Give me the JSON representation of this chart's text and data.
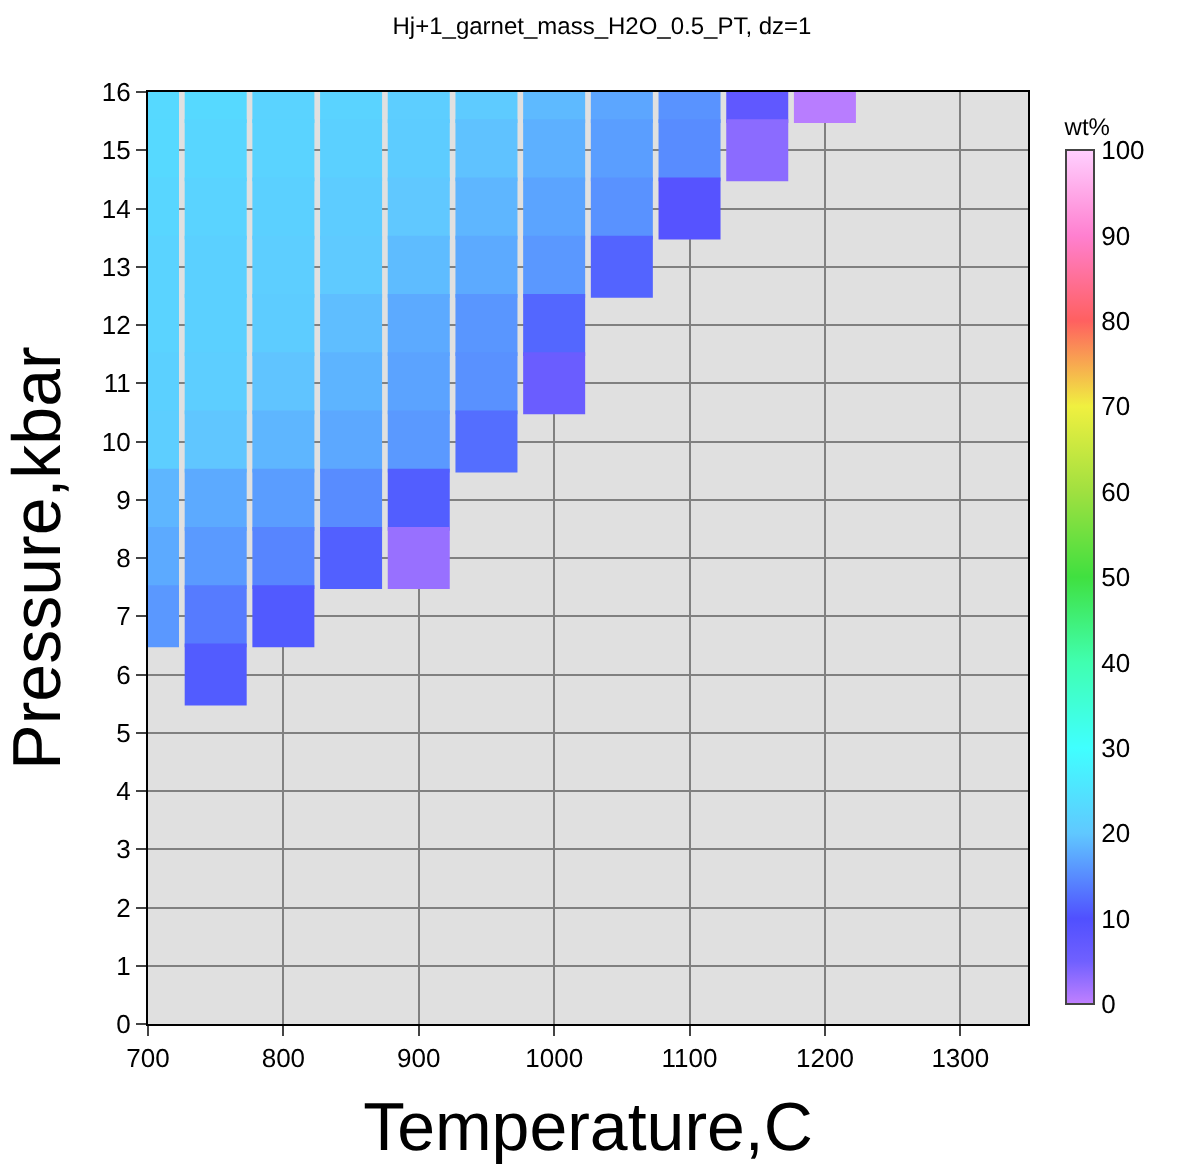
{
  "chart_data": {
    "type": "scatter",
    "title": "Hj+1_garnet_mass_H2O_0.5_PT, dz=1",
    "xlabel": "Temperature,C",
    "ylabel": "Pressure,kbar",
    "clabel": "wt%",
    "marker": "square",
    "x": [
      700,
      750,
      800,
      850,
      900,
      950,
      1000,
      1050,
      1100,
      1150,
      1200,
      700,
      750,
      800,
      850,
      900,
      950,
      1000,
      1050,
      1100,
      1150,
      700,
      750,
      800,
      850,
      900,
      950,
      1000,
      1050,
      1100,
      700,
      750,
      800,
      850,
      900,
      950,
      1000,
      1050,
      700,
      750,
      800,
      850,
      900,
      950,
      1000,
      700,
      750,
      800,
      850,
      900,
      950,
      1000,
      700,
      750,
      800,
      850,
      900,
      950,
      700,
      750,
      800,
      850,
      900,
      700,
      750,
      800,
      850,
      900,
      700,
      750,
      800,
      750
    ],
    "values": [
      16,
      16,
      16,
      16,
      16,
      16,
      16,
      16,
      16,
      16,
      16,
      15,
      15,
      15,
      15,
      15,
      15,
      15,
      15,
      15,
      15,
      14,
      14,
      14,
      14,
      14,
      14,
      14,
      14,
      14,
      13,
      13,
      13,
      13,
      13,
      13,
      13,
      13,
      12,
      12,
      12,
      12,
      12,
      12,
      12,
      11,
      11,
      11,
      11,
      11,
      11,
      11,
      10,
      10,
      10,
      10,
      10,
      10,
      9,
      9,
      9,
      9,
      9,
      8,
      8,
      8,
      8,
      8,
      7,
      7,
      7,
      6
    ],
    "cvalues": [
      23,
      23,
      22,
      22,
      21,
      20.5,
      18.8,
      17.2,
      15.6,
      7.5,
      0.5,
      23,
      22.5,
      22,
      21.5,
      20.8,
      19.5,
      18,
      16.5,
      15,
      3.3,
      22.5,
      22,
      21.5,
      20.8,
      20,
      18.5,
      17,
      15.5,
      9,
      22,
      21.5,
      21,
      20.3,
      19,
      17.5,
      16,
      11.7,
      22,
      21.5,
      20.8,
      19.2,
      17.5,
      15.8,
      11.9,
      21.5,
      21,
      19.7,
      18.3,
      16.9,
      15.4,
      6,
      21,
      19.8,
      18.5,
      17.3,
      16.1,
      12.5,
      18.5,
      17.5,
      16.4,
      15,
      11.2,
      17.5,
      16.2,
      14.4,
      11.3,
      2.5,
      16,
      13.6,
      10.8,
      11
    ],
    "clim": [
      0,
      100
    ],
    "cticks": [
      0,
      10,
      20,
      30,
      40,
      50,
      60,
      70,
      80,
      90,
      100
    ],
    "xlim": [
      700,
      1350
    ],
    "xticks": [
      700,
      800,
      900,
      1000,
      1100,
      1200,
      1300
    ],
    "ylim": [
      0,
      16
    ],
    "yticks": [
      0,
      1,
      2,
      3,
      4,
      5,
      6,
      7,
      8,
      9,
      10,
      11,
      12,
      13,
      14,
      15,
      16
    ],
    "grid": true
  }
}
